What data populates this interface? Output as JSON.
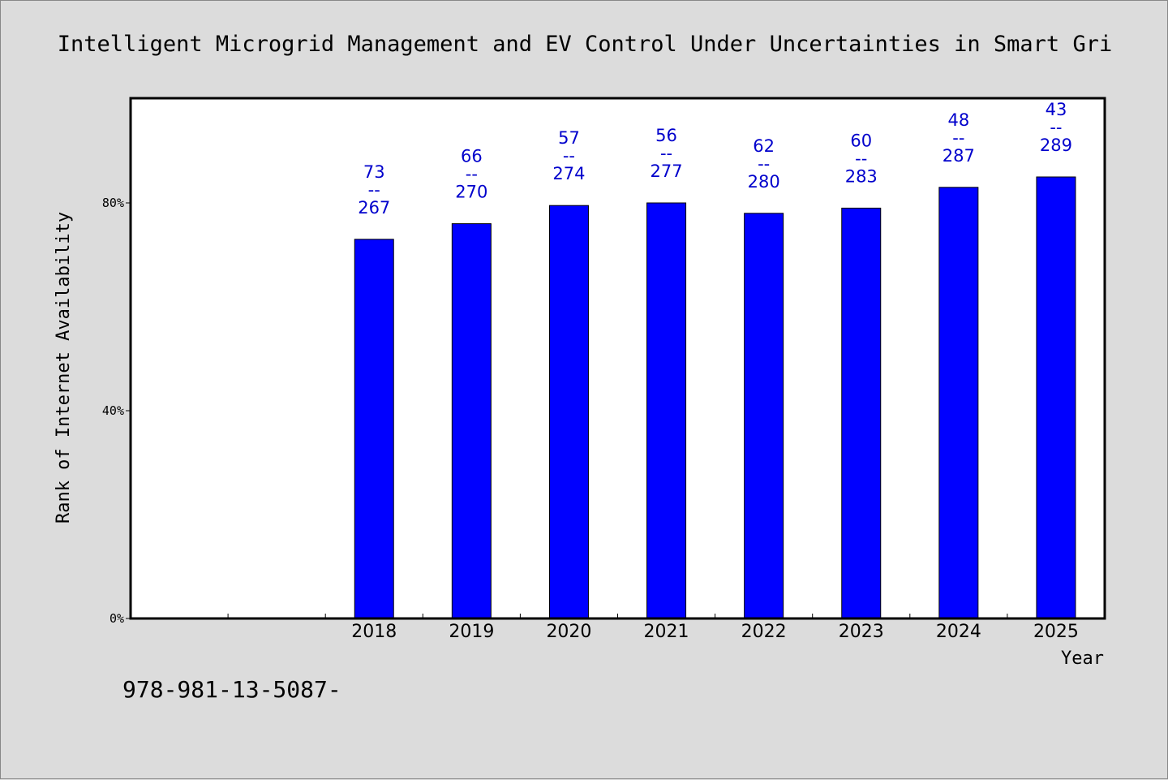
{
  "chart_data": {
    "type": "bar",
    "title": "Intelligent Microgrid Management and EV Control Under Uncertainties in Smart Gri",
    "xlabel": "Year",
    "ylabel": "Rank of Internet Availability",
    "categories": [
      "",
      "",
      "2018",
      "2019",
      "2020",
      "2021",
      "2022",
      "2023",
      "2024",
      "2025"
    ],
    "values": [
      null,
      null,
      73,
      76,
      79.5,
      80,
      78,
      79,
      83,
      85
    ],
    "data_labels": [
      null,
      null,
      {
        "top": "73",
        "sep": "--",
        "bottom": "267"
      },
      {
        "top": "66",
        "sep": "--",
        "bottom": "270"
      },
      {
        "top": "57",
        "sep": "--",
        "bottom": "274"
      },
      {
        "top": "56",
        "sep": "--",
        "bottom": "277"
      },
      {
        "top": "62",
        "sep": "--",
        "bottom": "280"
      },
      {
        "top": "60",
        "sep": "--",
        "bottom": "283"
      },
      {
        "top": "48",
        "sep": "--",
        "bottom": "287"
      },
      {
        "top": "43",
        "sep": "--",
        "bottom": "289"
      }
    ],
    "ylim": [
      0,
      100
    ],
    "yticks": [
      0,
      40,
      80
    ],
    "ytick_labels": [
      "0%",
      "40%",
      "80%"
    ],
    "grid": false,
    "colors": {
      "bar": "#0000ff",
      "label": "#0000cc",
      "background": "#dcdcdc",
      "plot_background": "#ffffff"
    }
  },
  "footer": {
    "text": "978-981-13-5087-"
  }
}
